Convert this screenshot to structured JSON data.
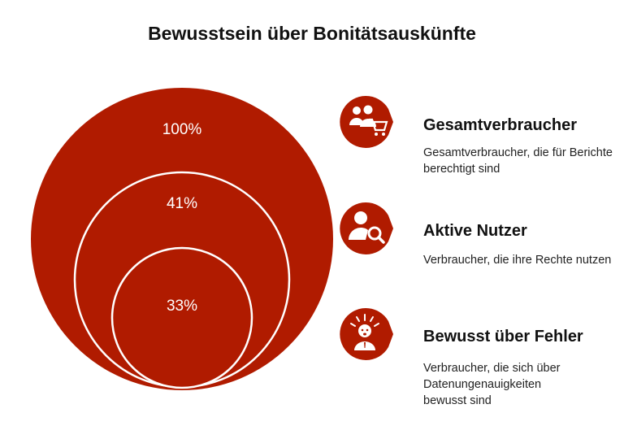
{
  "title": "Bewusstsein über Bonitätsauskünfte",
  "colors": {
    "accent": "#b01b00",
    "background": "#ffffff",
    "text": "#111111"
  },
  "circles": [
    {
      "label": "100%"
    },
    {
      "label": "41%"
    },
    {
      "label": "33%"
    }
  ],
  "legend": [
    {
      "icon": "shopping-users-icon",
      "title": "Gesamtverbraucher",
      "description": "Gesamtverbraucher, die für Berichte berechtigt sind"
    },
    {
      "icon": "user-search-icon",
      "title": "Aktive Nutzer",
      "description": "Verbraucher, die ihre Rechte nutzen"
    },
    {
      "icon": "alarmed-person-icon",
      "title": "Bewusst über Fehler",
      "description": "Verbraucher, die sich über Datenungenauigkeiten bewusst sind"
    }
  ]
}
